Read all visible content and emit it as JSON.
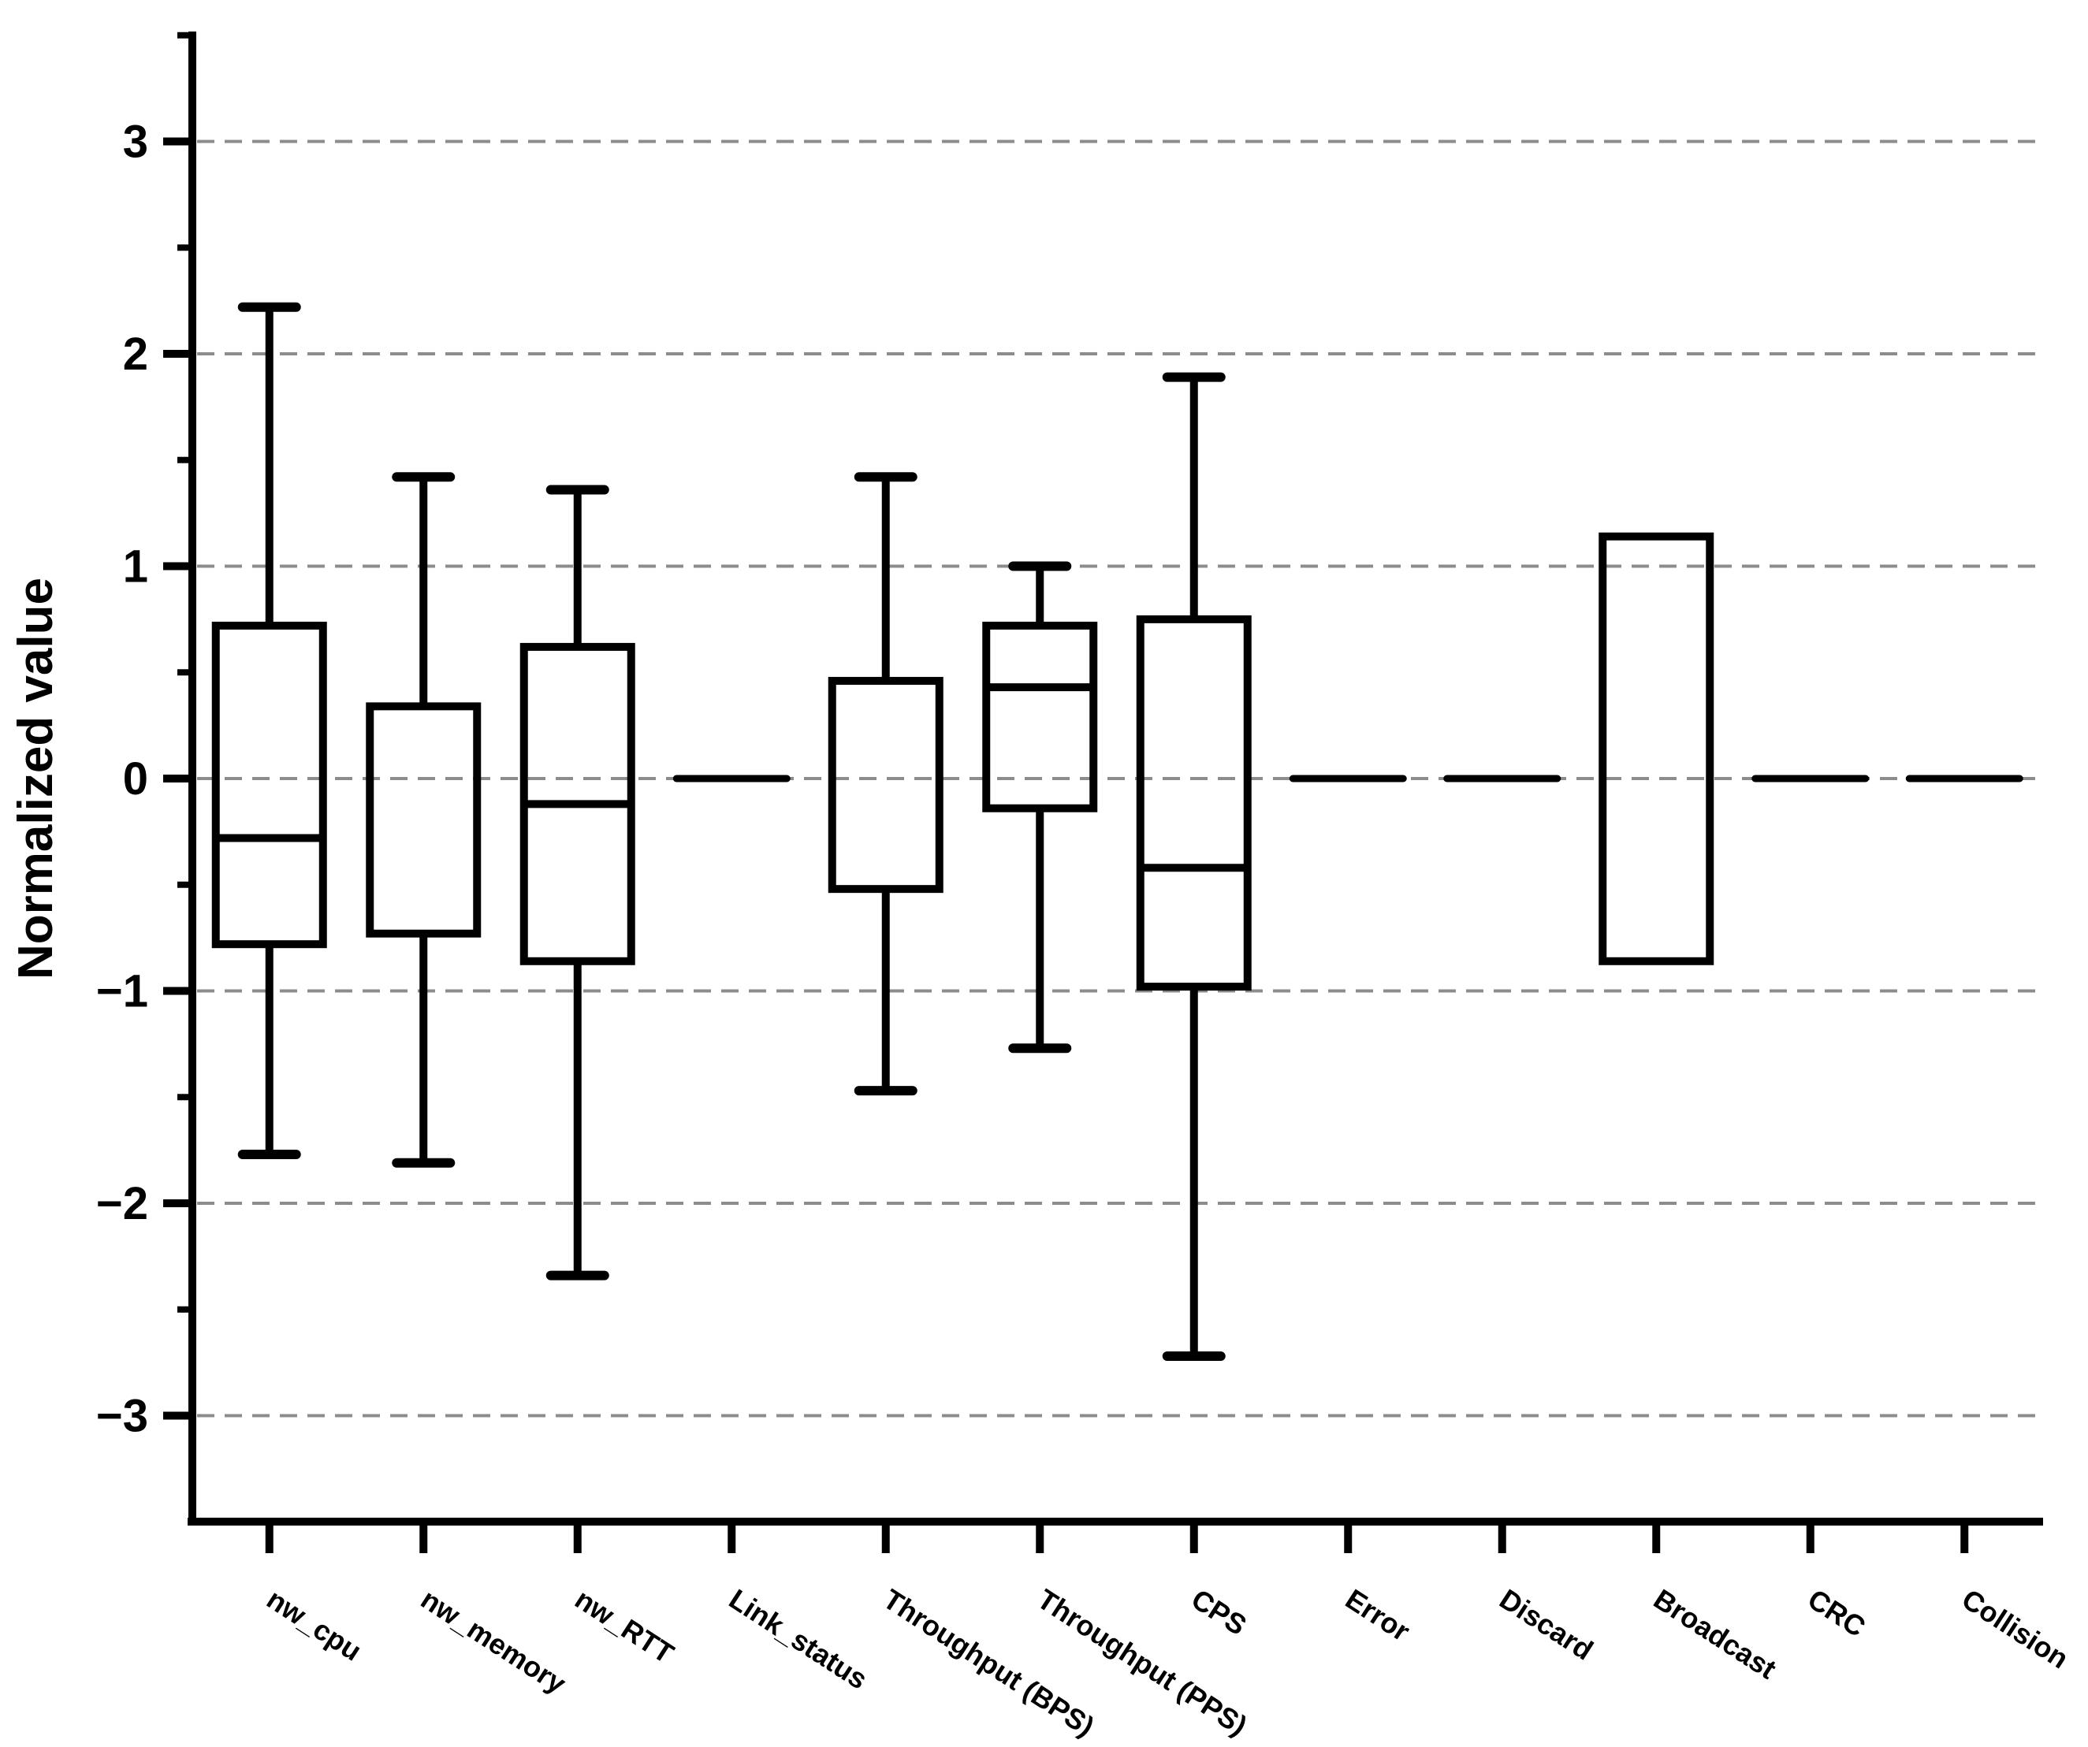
{
  "figure": {
    "background": "#ffffff",
    "ink_color": "#000000",
    "gridline_color": "#8c8c8c"
  },
  "chart_data": {
    "type": "boxplot",
    "title": "",
    "xlabel": "",
    "ylabel": "Normalized value",
    "ylim": [
      -3.5,
      3.5
    ],
    "yticks_major": [
      3,
      2,
      1,
      0,
      -1,
      -2,
      -3
    ],
    "ytick_labels": [
      "3",
      "2",
      "1",
      "0",
      "−1",
      "−2",
      "−3"
    ],
    "ytick_minor_step": 0.5,
    "grid": {
      "show": true,
      "axis": "y",
      "style": "dashed",
      "values": [
        3,
        2,
        1,
        0,
        -1,
        -2,
        -3
      ]
    },
    "legend_position": "none",
    "categories": [
      "nw_cpu",
      "nw_memory",
      "nw_RTT",
      "Link_status",
      "Throughput (BPS)",
      "Throughput (PPS)",
      "CPS",
      "Error",
      "Discard",
      "Broadcast",
      "CRC",
      "Collision"
    ],
    "series": [
      {
        "category": "nw_cpu",
        "whisker_low": -1.77,
        "q1": -0.78,
        "median": -0.28,
        "q3": 0.72,
        "whisker_high": 2.22
      },
      {
        "category": "nw_memory",
        "whisker_low": -1.81,
        "q1": -0.73,
        "median": null,
        "q3": 0.34,
        "whisker_high": 1.42
      },
      {
        "category": "nw_RTT",
        "whisker_low": -2.34,
        "q1": -0.86,
        "median": -0.12,
        "q3": 0.62,
        "whisker_high": 1.36
      },
      {
        "category": "Link_status",
        "whisker_low": 0,
        "q1": 0,
        "median": 0,
        "q3": 0,
        "whisker_high": 0
      },
      {
        "category": "Throughput (BPS)",
        "whisker_low": -1.47,
        "q1": -0.52,
        "median": null,
        "q3": 0.46,
        "whisker_high": 1.42
      },
      {
        "category": "Throughput (PPS)",
        "whisker_low": -1.27,
        "q1": -0.14,
        "median": 0.43,
        "q3": 0.72,
        "whisker_high": 1.0
      },
      {
        "category": "CPS",
        "whisker_low": -2.72,
        "q1": -0.98,
        "median": -0.42,
        "q3": 0.75,
        "whisker_high": 1.89
      },
      {
        "category": "Error",
        "whisker_low": 0,
        "q1": 0,
        "median": 0,
        "q3": 0,
        "whisker_high": 0
      },
      {
        "category": "Discard",
        "whisker_low": 0,
        "q1": 0,
        "median": 0,
        "q3": 0,
        "whisker_high": 0
      },
      {
        "category": "Broadcast",
        "whisker_low": null,
        "q1": -0.86,
        "median": null,
        "q3": 1.14,
        "whisker_high": null
      },
      {
        "category": "CRC",
        "whisker_low": 0,
        "q1": 0,
        "median": 0,
        "q3": 0,
        "whisker_high": 0
      },
      {
        "category": "Collision",
        "whisker_low": 0,
        "q1": 0,
        "median": 0,
        "q3": 0,
        "whisker_high": 0
      }
    ]
  }
}
